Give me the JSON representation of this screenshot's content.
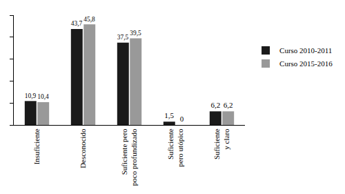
{
  "chart_data": {
    "type": "bar",
    "categories": [
      "Insuficiente",
      "Desconocido",
      "Suficiente pero poco profundizado",
      "Suficiente pero utópico",
      "Suficiente y claro"
    ],
    "series": [
      {
        "name": "Curso 2010-2011",
        "color": "#1a1a1a",
        "values": [
          10.9,
          43.7,
          37.5,
          1.5,
          6.2
        ],
        "value_labels": [
          "10,9",
          "43,7",
          "37,5",
          "1,5",
          "6,2"
        ]
      },
      {
        "name": "Curso 2015-2016",
        "color": "#999999",
        "values": [
          10.4,
          45.8,
          39.5,
          0,
          6.2
        ],
        "value_labels": [
          "10,4",
          "45,8",
          "39,5",
          "0",
          "6,2"
        ]
      }
    ],
    "ylim": [
      0,
      50
    ],
    "yticks": [
      0,
      10,
      20,
      30,
      40,
      50
    ],
    "grid": false,
    "legend": "right",
    "data_labels": true,
    "tick_labels": "x"
  }
}
